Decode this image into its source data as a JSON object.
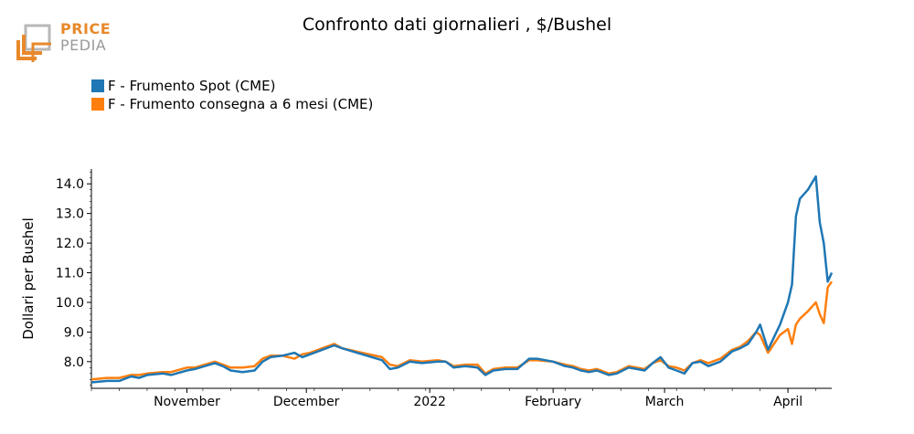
{
  "logo": {
    "line1": "PRICE",
    "line2": "PEDIA",
    "color_orange": "#e8892b",
    "color_grey": "#9a9a9a"
  },
  "chart_data": {
    "type": "line",
    "title": "Confronto dati giornalieri , $/Bushel",
    "xlabel": "",
    "ylabel": "Dollari per Bushel",
    "ylim": [
      7.1,
      14.5
    ],
    "yticks": [
      "8.0",
      "9.0",
      "10.0",
      "11.0",
      "12.0",
      "13.0",
      "14.0"
    ],
    "xlim": [
      "2021-10-08",
      "2022-04-12"
    ],
    "xtick_dates": [
      "2021-11-01",
      "2021-12-01",
      "2022-01-01",
      "2022-02-01",
      "2022-03-01",
      "2022-04-01"
    ],
    "xtick_labels": [
      "November",
      "December",
      "2022",
      "February",
      "March",
      "April"
    ],
    "grid": false,
    "legend_position": "top-left",
    "series": [
      {
        "name": "F - Frumento Spot (CME)",
        "color": "#1f77b4",
        "points": [
          [
            "2021-10-08",
            7.3
          ],
          [
            "2021-10-12",
            7.35
          ],
          [
            "2021-10-15",
            7.35
          ],
          [
            "2021-10-18",
            7.5
          ],
          [
            "2021-10-20",
            7.45
          ],
          [
            "2021-10-22",
            7.55
          ],
          [
            "2021-10-26",
            7.6
          ],
          [
            "2021-10-28",
            7.55
          ],
          [
            "2021-11-01",
            7.7
          ],
          [
            "2021-11-03",
            7.75
          ],
          [
            "2021-11-08",
            7.95
          ],
          [
            "2021-11-10",
            7.85
          ],
          [
            "2021-11-12",
            7.7
          ],
          [
            "2021-11-15",
            7.65
          ],
          [
            "2021-11-18",
            7.7
          ],
          [
            "2021-11-20",
            8.0
          ],
          [
            "2021-11-22",
            8.15
          ],
          [
            "2021-11-25",
            8.2
          ],
          [
            "2021-11-28",
            8.3
          ],
          [
            "2021-11-30",
            8.15
          ],
          [
            "2021-12-02",
            8.25
          ],
          [
            "2021-12-05",
            8.4
          ],
          [
            "2021-12-08",
            8.55
          ],
          [
            "2021-12-10",
            8.45
          ],
          [
            "2021-12-15",
            8.25
          ],
          [
            "2021-12-20",
            8.05
          ],
          [
            "2021-12-22",
            7.75
          ],
          [
            "2021-12-24",
            7.8
          ],
          [
            "2021-12-27",
            8.0
          ],
          [
            "2021-12-30",
            7.95
          ],
          [
            "2022-01-03",
            8.0
          ],
          [
            "2022-01-05",
            8.0
          ],
          [
            "2022-01-07",
            7.8
          ],
          [
            "2022-01-10",
            7.85
          ],
          [
            "2022-01-13",
            7.8
          ],
          [
            "2022-01-15",
            7.55
          ],
          [
            "2022-01-17",
            7.7
          ],
          [
            "2022-01-20",
            7.75
          ],
          [
            "2022-01-23",
            7.75
          ],
          [
            "2022-01-26",
            8.1
          ],
          [
            "2022-01-28",
            8.1
          ],
          [
            "2022-02-01",
            8.0
          ],
          [
            "2022-02-04",
            7.85
          ],
          [
            "2022-02-06",
            7.8
          ],
          [
            "2022-02-08",
            7.7
          ],
          [
            "2022-02-10",
            7.65
          ],
          [
            "2022-02-12",
            7.7
          ],
          [
            "2022-02-15",
            7.55
          ],
          [
            "2022-02-17",
            7.6
          ],
          [
            "2022-02-20",
            7.8
          ],
          [
            "2022-02-22",
            7.75
          ],
          [
            "2022-02-24",
            7.7
          ],
          [
            "2022-02-26",
            7.95
          ],
          [
            "2022-02-28",
            8.15
          ],
          [
            "2022-03-02",
            7.8
          ],
          [
            "2022-03-04",
            7.7
          ],
          [
            "2022-03-06",
            7.6
          ],
          [
            "2022-03-08",
            7.95
          ],
          [
            "2022-03-10",
            8.0
          ],
          [
            "2022-03-12",
            7.85
          ],
          [
            "2022-03-15",
            8.0
          ],
          [
            "2022-03-18",
            8.35
          ],
          [
            "2022-03-20",
            8.45
          ],
          [
            "2022-03-22",
            8.6
          ],
          [
            "2022-03-24",
            9.0
          ],
          [
            "2022-03-25",
            9.25
          ],
          [
            "2022-03-27",
            8.4
          ],
          [
            "2022-03-30",
            9.25
          ],
          [
            "2022-04-01",
            10.0
          ],
          [
            "2022-04-02",
            10.6
          ],
          [
            "2022-04-03",
            12.9
          ],
          [
            "2022-04-04",
            13.5
          ],
          [
            "2022-04-06",
            13.8
          ],
          [
            "2022-04-08",
            14.25
          ],
          [
            "2022-04-09",
            12.7
          ],
          [
            "2022-04-10",
            12.0
          ],
          [
            "2022-04-11",
            10.7
          ],
          [
            "2022-04-12",
            11.0
          ]
        ]
      },
      {
        "name": "F - Frumento consegna a 6 mesi (CME)",
        "color": "#ff7f0e",
        "points": [
          [
            "2021-10-08",
            7.4
          ],
          [
            "2021-10-12",
            7.45
          ],
          [
            "2021-10-15",
            7.45
          ],
          [
            "2021-10-18",
            7.55
          ],
          [
            "2021-10-20",
            7.55
          ],
          [
            "2021-10-22",
            7.6
          ],
          [
            "2021-10-26",
            7.65
          ],
          [
            "2021-10-28",
            7.65
          ],
          [
            "2021-11-01",
            7.8
          ],
          [
            "2021-11-03",
            7.8
          ],
          [
            "2021-11-08",
            8.0
          ],
          [
            "2021-11-10",
            7.9
          ],
          [
            "2021-11-12",
            7.8
          ],
          [
            "2021-11-15",
            7.8
          ],
          [
            "2021-11-18",
            7.85
          ],
          [
            "2021-11-20",
            8.1
          ],
          [
            "2021-11-22",
            8.2
          ],
          [
            "2021-11-25",
            8.2
          ],
          [
            "2021-11-28",
            8.1
          ],
          [
            "2021-11-30",
            8.25
          ],
          [
            "2021-12-02",
            8.3
          ],
          [
            "2021-12-05",
            8.45
          ],
          [
            "2021-12-08",
            8.6
          ],
          [
            "2021-12-10",
            8.45
          ],
          [
            "2021-12-15",
            8.3
          ],
          [
            "2021-12-20",
            8.15
          ],
          [
            "2021-12-22",
            7.9
          ],
          [
            "2021-12-24",
            7.85
          ],
          [
            "2021-12-27",
            8.05
          ],
          [
            "2021-12-30",
            8.0
          ],
          [
            "2022-01-03",
            8.05
          ],
          [
            "2022-01-05",
            8.0
          ],
          [
            "2022-01-07",
            7.85
          ],
          [
            "2022-01-10",
            7.9
          ],
          [
            "2022-01-13",
            7.9
          ],
          [
            "2022-01-15",
            7.6
          ],
          [
            "2022-01-17",
            7.75
          ],
          [
            "2022-01-20",
            7.8
          ],
          [
            "2022-01-23",
            7.8
          ],
          [
            "2022-01-26",
            8.05
          ],
          [
            "2022-01-28",
            8.05
          ],
          [
            "2022-02-01",
            8.0
          ],
          [
            "2022-02-04",
            7.9
          ],
          [
            "2022-02-06",
            7.85
          ],
          [
            "2022-02-08",
            7.75
          ],
          [
            "2022-02-10",
            7.7
          ],
          [
            "2022-02-12",
            7.75
          ],
          [
            "2022-02-15",
            7.6
          ],
          [
            "2022-02-17",
            7.65
          ],
          [
            "2022-02-20",
            7.85
          ],
          [
            "2022-02-22",
            7.8
          ],
          [
            "2022-02-24",
            7.75
          ],
          [
            "2022-02-26",
            7.95
          ],
          [
            "2022-02-28",
            8.05
          ],
          [
            "2022-03-02",
            7.85
          ],
          [
            "2022-03-04",
            7.8
          ],
          [
            "2022-03-06",
            7.7
          ],
          [
            "2022-03-08",
            7.95
          ],
          [
            "2022-03-10",
            8.05
          ],
          [
            "2022-03-12",
            7.95
          ],
          [
            "2022-03-15",
            8.1
          ],
          [
            "2022-03-18",
            8.4
          ],
          [
            "2022-03-20",
            8.5
          ],
          [
            "2022-03-22",
            8.7
          ],
          [
            "2022-03-24",
            9.0
          ],
          [
            "2022-03-25",
            8.9
          ],
          [
            "2022-03-27",
            8.3
          ],
          [
            "2022-03-30",
            8.9
          ],
          [
            "2022-04-01",
            9.1
          ],
          [
            "2022-04-02",
            8.6
          ],
          [
            "2022-04-03",
            9.25
          ],
          [
            "2022-04-04",
            9.45
          ],
          [
            "2022-04-06",
            9.7
          ],
          [
            "2022-04-08",
            10.0
          ],
          [
            "2022-04-09",
            9.6
          ],
          [
            "2022-04-10",
            9.3
          ],
          [
            "2022-04-11",
            10.5
          ],
          [
            "2022-04-12",
            10.7
          ]
        ]
      }
    ]
  }
}
